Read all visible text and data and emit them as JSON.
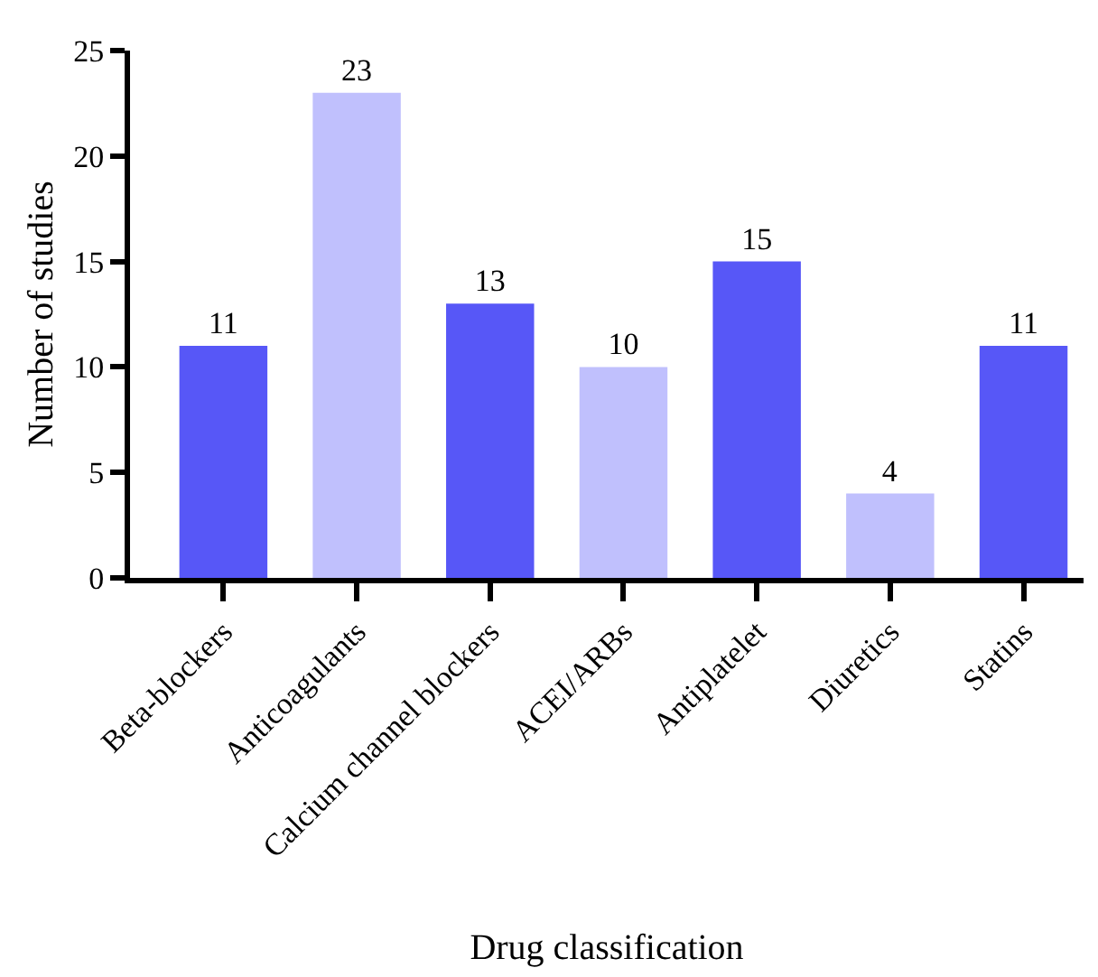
{
  "chart_data": {
    "type": "bar",
    "categories": [
      "Beta-blockers",
      "Anticoagulants",
      "Calcium channel blockers",
      "ACEI/ARBs",
      "Antiplatelet",
      "Diuretics",
      "Statins"
    ],
    "values": [
      11,
      23,
      13,
      10,
      15,
      4,
      11
    ],
    "colors": [
      "#5757f7",
      "#c0c0fd",
      "#5757f7",
      "#c0c0fd",
      "#5757f7",
      "#c0c0fd",
      "#5757f7"
    ],
    "xlabel": "Drug classification",
    "ylabel": "Number of studies",
    "ylim": [
      0,
      25
    ],
    "yticks": [
      0,
      5,
      10,
      15,
      20,
      25
    ],
    "data_labels": true
  }
}
